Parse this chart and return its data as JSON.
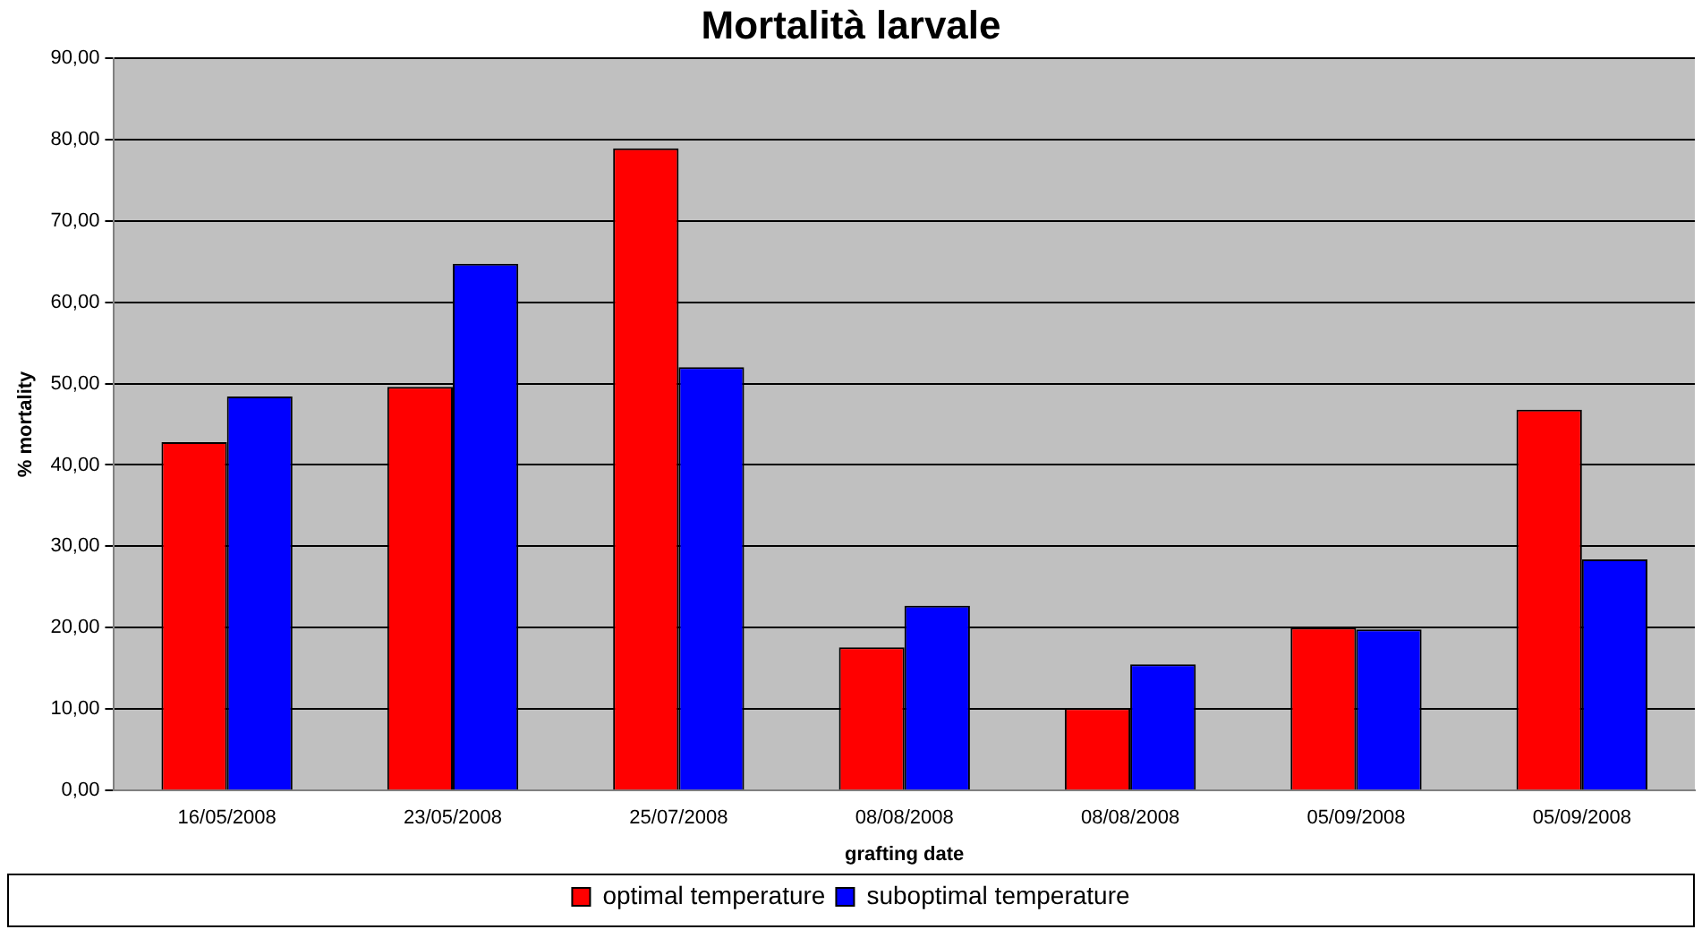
{
  "chart_data": {
    "type": "bar",
    "title": "Mortalità larvale",
    "xlabel": "grafting date",
    "ylabel": "% mortality",
    "categories": [
      "16/05/2008",
      "23/05/2008",
      "25/07/2008",
      "08/08/2008",
      "08/08/2008",
      "05/09/2008",
      "05/09/2008"
    ],
    "series": [
      {
        "name": "optimal temperature",
        "color": "#ff0000",
        "values": [
          42.8,
          49.6,
          78.9,
          17.6,
          10.1,
          20.0,
          46.8
        ]
      },
      {
        "name": "suboptimal temperature",
        "color": "#0000ff",
        "values": [
          48.4,
          64.7,
          52.0,
          22.7,
          15.5,
          19.8,
          28.4
        ]
      }
    ],
    "ylim": [
      0,
      90
    ],
    "yticks": [
      {
        "value": 0,
        "label": "0,00"
      },
      {
        "value": 10,
        "label": "10,00"
      },
      {
        "value": 20,
        "label": "20,00"
      },
      {
        "value": 30,
        "label": "30,00"
      },
      {
        "value": 40,
        "label": "40,00"
      },
      {
        "value": 50,
        "label": "50,00"
      },
      {
        "value": 60,
        "label": "60,00"
      },
      {
        "value": 70,
        "label": "70,00"
      },
      {
        "value": 80,
        "label": "80,00"
      },
      {
        "value": 90,
        "label": "90,00"
      }
    ],
    "grid": "y",
    "legend": "bottom"
  }
}
